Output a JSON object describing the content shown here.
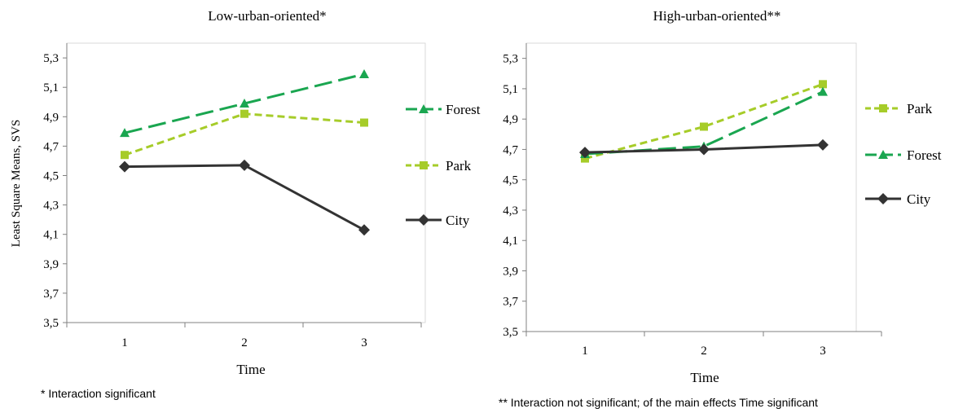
{
  "footnotes": {
    "left": "* Interaction significant",
    "right": "** Interaction not significant; of the main effects Time significant"
  },
  "chart_data": [
    {
      "type": "line",
      "title": "Low-urban-oriented*",
      "xlabel": "Time",
      "ylabel": "Least Square Means, SVS",
      "categories": [
        "1",
        "2",
        "3"
      ],
      "ylim": [
        3.5,
        5.4
      ],
      "yticks": [
        "3,5",
        "3,7",
        "3,9",
        "4,1",
        "4,3",
        "4,5",
        "4,7",
        "4,9",
        "5,1",
        "5,3"
      ],
      "ytick_values": [
        3.5,
        3.7,
        3.9,
        4.1,
        4.3,
        4.5,
        4.7,
        4.9,
        5.1,
        5.3
      ],
      "grid": false,
      "legend": "right",
      "series": [
        {
          "name": "Forest",
          "values": [
            4.79,
            4.99,
            5.19
          ],
          "color": "#1aa650",
          "dash": "long-dash",
          "marker": "triangle"
        },
        {
          "name": "Park",
          "values": [
            4.64,
            4.92,
            4.86
          ],
          "color": "#a6cc29",
          "dash": "short-dash",
          "marker": "square"
        },
        {
          "name": "City",
          "values": [
            4.56,
            4.57,
            4.13
          ],
          "color": "#333333",
          "dash": "solid",
          "marker": "diamond"
        }
      ]
    },
    {
      "type": "line",
      "title": "High-urban-oriented**",
      "xlabel": "Time",
      "ylabel": "",
      "categories": [
        "1",
        "2",
        "3"
      ],
      "ylim": [
        3.5,
        5.4
      ],
      "yticks": [
        "3,5",
        "3,7",
        "3,9",
        "4,1",
        "4,3",
        "4,5",
        "4,7",
        "4,9",
        "5,1",
        "5,3"
      ],
      "ytick_values": [
        3.5,
        3.7,
        3.9,
        4.1,
        4.3,
        4.5,
        4.7,
        4.9,
        5.1,
        5.3
      ],
      "grid": false,
      "legend": "right",
      "series": [
        {
          "name": "Park",
          "values": [
            4.64,
            4.85,
            5.13
          ],
          "color": "#a6cc29",
          "dash": "short-dash",
          "marker": "square"
        },
        {
          "name": "Forest",
          "values": [
            4.67,
            4.72,
            5.08
          ],
          "color": "#1aa650",
          "dash": "long-dash",
          "marker": "triangle"
        },
        {
          "name": "City",
          "values": [
            4.68,
            4.7,
            4.73
          ],
          "color": "#333333",
          "dash": "solid",
          "marker": "diamond"
        }
      ]
    }
  ]
}
